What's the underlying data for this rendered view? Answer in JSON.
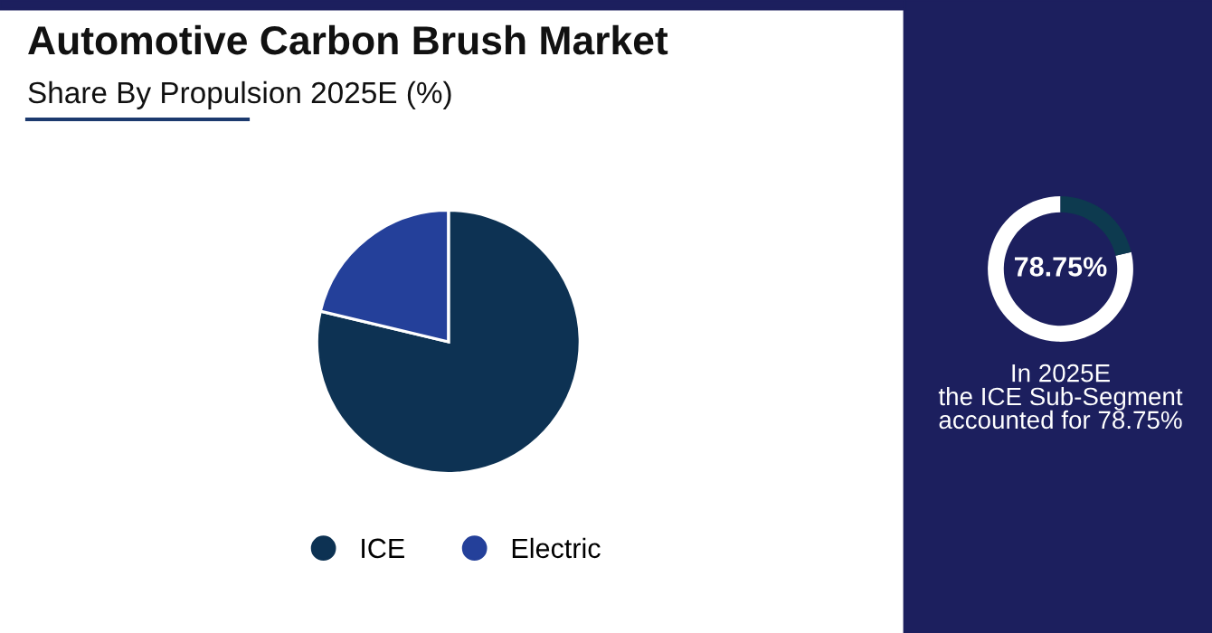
{
  "chart_data": [
    {
      "type": "pie",
      "title": "Automotive Carbon Brush Market",
      "subtitle": "Share By Propulsion 2025E (%)",
      "categories": [
        "ICE",
        "Electric"
      ],
      "values": [
        78.75,
        21.25
      ],
      "colors": [
        "#0d3253",
        "#24409a"
      ],
      "legend": "bottom"
    },
    {
      "type": "donut",
      "categories": [
        null,
        null
      ],
      "values": [
        78.75,
        21.25
      ],
      "colors": [
        "#ffffff",
        "#0d3a4f"
      ],
      "annotations": [
        "78.75%",
        "In 2025E\nthe ICE Sub-Segment\naccounted for 78.75%"
      ]
    }
  ]
}
